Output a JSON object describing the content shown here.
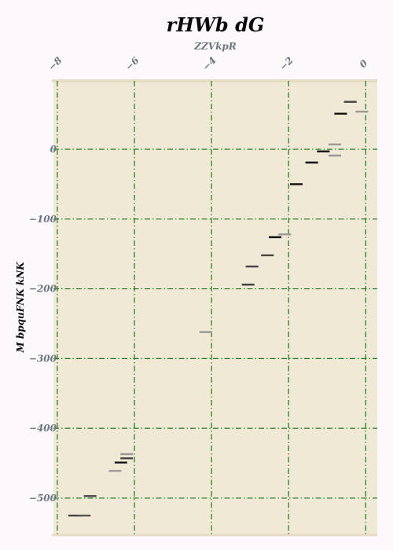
{
  "chart_data": {
    "type": "scatter",
    "marker": "horizontal-dash",
    "title": "rHWb dG",
    "subtitle": "ZZVkpR",
    "xlabel": "",
    "ylabel": "M bpquFNK kNK",
    "x_axis_position": "top",
    "xlim": [
      -8.1,
      0.3
    ],
    "ylim": [
      -553,
      98
    ],
    "x_ticks": [
      -8,
      -6,
      -4,
      -2,
      0
    ],
    "x_tick_labels": [
      "−8",
      "−6",
      "−4",
      "−2",
      "0"
    ],
    "y_ticks": [
      0,
      -100,
      -200,
      -300,
      -400,
      -500
    ],
    "y_tick_labels": [
      "0",
      "−100",
      "−200",
      "−300",
      "−400",
      "−500"
    ],
    "grid": true,
    "colors": {
      "page_background": "#fcf8fc",
      "plot_background": "#f0e9d6",
      "grid": "#1a7a1a",
      "tick_text": "#6b7780",
      "title_text": "#0a0a0a"
    },
    "points": [
      {
        "x": -7.55,
        "y": -525,
        "color": "#444444"
      },
      {
        "x": -7.3,
        "y": -525,
        "color": "#555555"
      },
      {
        "x": -7.15,
        "y": -497,
        "color": "#444444"
      },
      {
        "x": -6.5,
        "y": -461,
        "color": "#999999"
      },
      {
        "x": -6.35,
        "y": -449,
        "color": "#111111"
      },
      {
        "x": -6.2,
        "y": -443,
        "color": "#444444"
      },
      {
        "x": -6.2,
        "y": -437,
        "color": "#999999"
      },
      {
        "x": -4.15,
        "y": -262,
        "color": "#999999"
      },
      {
        "x": -3.05,
        "y": -194,
        "color": "#444444"
      },
      {
        "x": -2.95,
        "y": -168,
        "color": "#444444"
      },
      {
        "x": -2.55,
        "y": -152,
        "color": "#444444"
      },
      {
        "x": -2.35,
        "y": -126,
        "color": "#111111"
      },
      {
        "x": -2.1,
        "y": -122,
        "color": "#999999"
      },
      {
        "x": -1.8,
        "y": -50,
        "color": "#111111"
      },
      {
        "x": -1.4,
        "y": -19,
        "color": "#111111"
      },
      {
        "x": -1.1,
        "y": -3,
        "color": "#111111"
      },
      {
        "x": -0.8,
        "y": 7,
        "color": "#999999"
      },
      {
        "x": -0.8,
        "y": -9,
        "color": "#999999"
      },
      {
        "x": -0.65,
        "y": 51,
        "color": "#111111"
      },
      {
        "x": -0.4,
        "y": 68,
        "color": "#444444"
      },
      {
        "x": -0.1,
        "y": 54,
        "color": "#999999"
      }
    ]
  }
}
